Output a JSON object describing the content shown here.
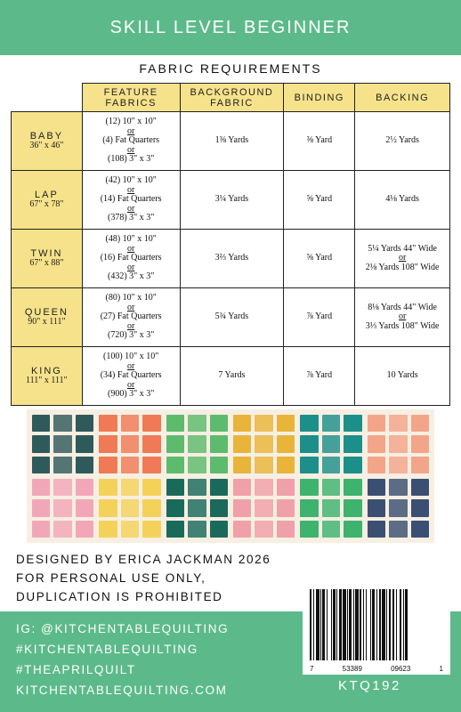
{
  "header": {
    "title": "SKILL LEVEL BEGINNER"
  },
  "fabric_requirements": {
    "title": "FABRIC REQUIREMENTS",
    "columns": [
      "FEATURE FABRICS",
      "BACKGROUND FABRIC",
      "BINDING",
      "BACKING"
    ],
    "rows": [
      {
        "size": "BABY",
        "dims": "36\" x 46\"",
        "feature": [
          "(12) 10\" x 10\"",
          "or",
          "(4) Fat Quarters",
          "or",
          "(108) 3\" x 3\""
        ],
        "background": "1⅜ Yards",
        "binding": "⅜ Yard",
        "backing": [
          "2½ Yards"
        ]
      },
      {
        "size": "LAP",
        "dims": "67\" x 78\"",
        "feature": [
          "(42) 10\" x 10\"",
          "or",
          "(14) Fat Quarters",
          "or",
          "(378) 3\" x 3\""
        ],
        "background": "3¼ Yards",
        "binding": "⅝ Yard",
        "backing": [
          "4⅛ Yards"
        ]
      },
      {
        "size": "TWIN",
        "dims": "67\" x 88\"",
        "feature": [
          "(48) 10\" x 10\"",
          "or",
          "(16) Fat Quarters",
          "or",
          "(432) 3\" x 3\""
        ],
        "background": "3⅔ Yards",
        "binding": "⅝ Yard",
        "backing": [
          "5¼ Yards 44\" Wide",
          "or",
          "2⅛ Yards 108\" Wide"
        ]
      },
      {
        "size": "QUEEN",
        "dims": "90\" x 111\"",
        "feature": [
          "(80) 10\" x 10\"",
          "or",
          "(27) Fat Quarters",
          "or",
          "(720) 3\" x 3\""
        ],
        "background": "5¾ Yards",
        "binding": "⅞ Yard",
        "backing": [
          "8⅛ Yards 44\" Wide",
          "or",
          "3⅓ Yards 108\" Wide"
        ]
      },
      {
        "size": "KING",
        "dims": "111\" x 111\"",
        "feature": [
          "(100) 10\" x 10\"",
          "or",
          "(34) Fat Quarters",
          "or",
          "(900) 3\" x 3\""
        ],
        "background": "7 Yards",
        "binding": "⅞ Yard",
        "backing": [
          "10 Yards"
        ]
      }
    ]
  },
  "swatch_colors": {
    "row1": [
      "#2f5a5c",
      "#ef7a55",
      "#5dbb6e",
      "#e9b43a",
      "#1d8f8a",
      "#f3a58a"
    ],
    "row2": [
      "#f2a7b8",
      "#f4d25a",
      "#1a6a5b",
      "#f0a0a8",
      "#3db36e",
      "#3b4f72"
    ]
  },
  "designer": {
    "lines": [
      "DESIGNED BY ERICA JACKMAN 2026",
      "FOR PERSONAL USE ONLY,",
      "DUPLICATION IS PROHIBITED"
    ]
  },
  "footer": {
    "links": [
      "IG: @KITCHENTABLEQUILTING",
      "#KITCHENTABLEQUILTING",
      "#THEAPRILQUILT",
      "KITCHENTABLEQUILTING.COM"
    ],
    "sku": "KTQ192"
  },
  "barcode": {
    "digits": [
      "7",
      "53389",
      "09623",
      "1"
    ]
  },
  "colors": {
    "brand_green": "#5cba8a",
    "header_yellow": "#f6e28a"
  }
}
